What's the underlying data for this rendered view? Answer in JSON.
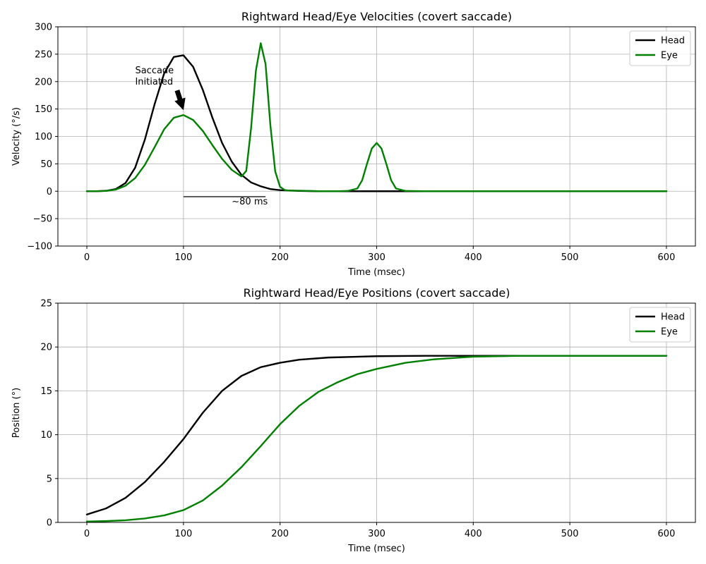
{
  "chart_data": [
    {
      "type": "line",
      "title": "Rightward Head/Eye Velocities (covert saccade)",
      "xlabel": "Time (msec)",
      "ylabel": "Velocity (°/s)",
      "xlim": [
        -30,
        630
      ],
      "ylim": [
        -100,
        300
      ],
      "xticks": [
        0,
        100,
        200,
        300,
        400,
        500,
        600
      ],
      "xtick_labels": [
        "0",
        "100",
        "200",
        "300",
        "400",
        "500",
        "600"
      ],
      "yticks": [
        -100,
        -50,
        0,
        50,
        100,
        150,
        200,
        250,
        300
      ],
      "ytick_labels": [
        "−100",
        "−50",
        "0",
        "50",
        "100",
        "150",
        "200",
        "250",
        "300"
      ],
      "grid": true,
      "legend_position": "top-right",
      "series": [
        {
          "name": "Head",
          "color": "#000000",
          "x": [
            0,
            10,
            20,
            30,
            40,
            50,
            60,
            70,
            80,
            90,
            100,
            110,
            120,
            130,
            140,
            150,
            160,
            170,
            180,
            190,
            200,
            220,
            240,
            260,
            280,
            300,
            350,
            400,
            450,
            500,
            550,
            600
          ],
          "y": [
            0.0,
            0.1,
            0.8,
            4,
            15,
            43,
            94,
            158,
            215,
            245,
            248,
            227,
            185,
            134,
            88,
            54,
            30,
            16,
            9,
            4,
            2,
            0.5,
            0,
            0,
            0,
            0,
            0,
            0,
            0,
            0,
            0,
            0
          ]
        },
        {
          "name": "Eye",
          "color": "#008000",
          "x": [
            0,
            10,
            20,
            30,
            40,
            50,
            60,
            70,
            80,
            90,
            100,
            110,
            120,
            130,
            140,
            150,
            160,
            165,
            170,
            175,
            180,
            185,
            190,
            195,
            200,
            205,
            210,
            220,
            240,
            260,
            270,
            280,
            285,
            290,
            295,
            300,
            305,
            310,
            315,
            320,
            330,
            350,
            400,
            450,
            500,
            550,
            600
          ],
          "y": [
            0.0,
            0.1,
            0.5,
            3,
            10,
            24,
            48,
            80,
            113,
            134,
            139,
            130,
            110,
            84,
            59,
            39,
            27,
            37,
            115,
            220,
            270,
            232,
            120,
            36,
            8,
            2,
            1,
            1,
            0,
            0,
            0.5,
            5,
            20,
            50,
            78,
            88,
            78,
            50,
            20,
            5,
            0.5,
            0,
            0,
            0,
            0,
            0,
            0
          ]
        }
      ],
      "annotations": {
        "saccade_line1": "Saccade",
        "saccade_line2": "Initiated",
        "saccade_text_at": [
          50,
          220
        ],
        "saccade_arrow_to": [
          100,
          148
        ],
        "interval_label": "~80 ms",
        "interval_line_from": [
          100,
          -10
        ],
        "interval_line_to": [
          185,
          -10
        ],
        "interval_text_at": [
          150,
          -19
        ]
      }
    },
    {
      "type": "line",
      "title": "Rightward Head/Eye Positions (covert saccade)",
      "xlabel": "Time (msec)",
      "ylabel": "Position (°)",
      "xlim": [
        -30,
        630
      ],
      "ylim": [
        0,
        25
      ],
      "xticks": [
        0,
        100,
        200,
        300,
        400,
        500,
        600
      ],
      "xtick_labels": [
        "0",
        "100",
        "200",
        "300",
        "400",
        "500",
        "600"
      ],
      "yticks": [
        0,
        5,
        10,
        15,
        20,
        25
      ],
      "ytick_labels": [
        "0",
        "5",
        "10",
        "15",
        "20",
        "25"
      ],
      "grid": true,
      "legend_position": "top-right",
      "series": [
        {
          "name": "Head",
          "color": "#000000",
          "x": [
            0,
            20,
            40,
            60,
            80,
            100,
            120,
            140,
            160,
            180,
            200,
            220,
            250,
            300,
            350,
            400,
            450,
            500,
            550,
            600
          ],
          "y": [
            0.9,
            1.6,
            2.8,
            4.6,
            6.9,
            9.5,
            12.5,
            15.0,
            16.7,
            17.7,
            18.2,
            18.55,
            18.8,
            18.95,
            19.0,
            19.0,
            19.0,
            19.0,
            19.0,
            19.0
          ]
        },
        {
          "name": "Eye",
          "color": "#008000",
          "x": [
            0,
            20,
            40,
            60,
            80,
            100,
            120,
            140,
            160,
            180,
            200,
            220,
            240,
            260,
            280,
            300,
            330,
            360,
            400,
            450,
            500,
            550,
            600
          ],
          "y": [
            0.1,
            0.15,
            0.25,
            0.45,
            0.8,
            1.4,
            2.5,
            4.2,
            6.3,
            8.7,
            11.2,
            13.3,
            14.9,
            16.0,
            16.9,
            17.5,
            18.2,
            18.6,
            18.9,
            19.0,
            19.0,
            19.0,
            19.0
          ]
        }
      ]
    }
  ]
}
